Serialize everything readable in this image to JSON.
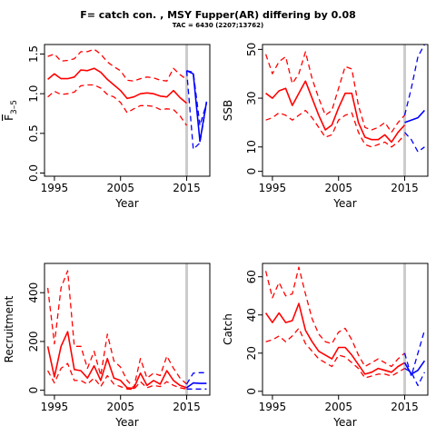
{
  "header": {
    "title": "F= catch con. , MSY Fupper(AR) differing by 0.08",
    "subtitle": "TAC = 6430 (2207;13762)"
  },
  "colors": {
    "historical": "#ff0000",
    "projection": "#0000ff",
    "marker_line": "#cccccc"
  },
  "chart_data": [
    {
      "type": "line",
      "ylabel": "F3-5",
      "ylabel_main": "F",
      "ylabel_sub": "3–5",
      "xlabel": "Year",
      "xlim": [
        1993.5,
        2018.5
      ],
      "ylim": [
        -0.04,
        1.62
      ],
      "xticks": [
        1995,
        2005,
        2015
      ],
      "yticks": [
        0.0,
        0.5,
        1.0,
        1.5
      ],
      "ytick_labels": [
        "0.0",
        "0.5",
        "1.0",
        "1.5"
      ],
      "vline": 2015,
      "x": [
        1994,
        1995,
        1996,
        1997,
        1998,
        1999,
        2000,
        2001,
        2002,
        2003,
        2004,
        2005,
        2006,
        2007,
        2008,
        2009,
        2010,
        2011,
        2012,
        2013,
        2014,
        2015
      ],
      "median": [
        1.18,
        1.25,
        1.19,
        1.19,
        1.21,
        1.3,
        1.29,
        1.32,
        1.27,
        1.18,
        1.11,
        1.04,
        0.94,
        0.96,
        1.0,
        1.01,
        1.0,
        0.97,
        0.96,
        1.04,
        0.95,
        0.88
      ],
      "upper": [
        1.47,
        1.5,
        1.41,
        1.42,
        1.44,
        1.53,
        1.53,
        1.56,
        1.5,
        1.4,
        1.34,
        1.29,
        1.17,
        1.16,
        1.19,
        1.21,
        1.2,
        1.17,
        1.16,
        1.32,
        1.24,
        1.18
      ],
      "lower": [
        0.96,
        1.03,
        0.99,
        1.0,
        1.02,
        1.1,
        1.11,
        1.11,
        1.07,
        0.99,
        0.96,
        0.89,
        0.76,
        0.81,
        0.85,
        0.85,
        0.84,
        0.8,
        0.81,
        0.8,
        0.72,
        0.6
      ],
      "proj_x": [
        2015,
        2016,
        2017,
        2018
      ],
      "proj_median": [
        1.29,
        1.25,
        0.4,
        0.9
      ],
      "proj_upper": [
        1.29,
        1.27,
        0.6,
        0.88
      ],
      "proj_lower": [
        1.29,
        0.3,
        0.38,
        0.88
      ]
    },
    {
      "type": "line",
      "ylabel": "SSB",
      "xlabel": "Year",
      "xlim": [
        1993.5,
        2018.5
      ],
      "ylim": [
        -2,
        52
      ],
      "xticks": [
        1995,
        2005,
        2015
      ],
      "yticks": [
        0,
        10,
        30,
        50
      ],
      "ytick_labels": [
        "0",
        "10",
        "30",
        "50"
      ],
      "vline": 2015,
      "x": [
        1994,
        1995,
        1996,
        1997,
        1998,
        1999,
        2000,
        2001,
        2002,
        2003,
        2004,
        2005,
        2006,
        2007,
        2008,
        2009,
        2010,
        2011,
        2012,
        2013,
        2014,
        2015
      ],
      "median": [
        32,
        30,
        33,
        34,
        27,
        32,
        37,
        30,
        23,
        17,
        19,
        26,
        32,
        32,
        20,
        14,
        13,
        13,
        15,
        12,
        16,
        19
      ],
      "upper": [
        48,
        40,
        45,
        47,
        36,
        40,
        49,
        38,
        30,
        23,
        25,
        34,
        43,
        42,
        27,
        18,
        17,
        18,
        20,
        16,
        20,
        23
      ],
      "lower": [
        21,
        22,
        24,
        23,
        21,
        23,
        25,
        22,
        18,
        14,
        15,
        21,
        23,
        24,
        16,
        11,
        10,
        11,
        12,
        10,
        12,
        15
      ],
      "proj_x": [
        2015,
        2016,
        2017,
        2018
      ],
      "proj_median": [
        20,
        21,
        22,
        25
      ],
      "proj_upper": [
        23,
        34,
        47,
        52
      ],
      "proj_lower": [
        16,
        13,
        8,
        10
      ]
    },
    {
      "type": "line",
      "ylabel": "Recruitment",
      "xlabel": "Year",
      "xlim": [
        1993.5,
        2018.5
      ],
      "ylim": [
        -20,
        520
      ],
      "xticks": [
        1995,
        2005,
        2015
      ],
      "yticks": [
        0,
        200,
        400
      ],
      "ytick_labels": [
        "0",
        "200",
        "400"
      ],
      "vline": 2015,
      "x": [
        1994,
        1995,
        1996,
        1997,
        1998,
        1999,
        2000,
        2001,
        2002,
        2003,
        2004,
        2005,
        2006,
        2007,
        2008,
        2009,
        2010,
        2011,
        2012,
        2013,
        2014,
        2015
      ],
      "median": [
        180,
        55,
        180,
        240,
        85,
        80,
        50,
        100,
        40,
        130,
        50,
        40,
        10,
        8,
        70,
        20,
        40,
        25,
        80,
        40,
        20,
        10
      ],
      "upper": [
        420,
        190,
        420,
        490,
        180,
        180,
        90,
        160,
        60,
        230,
        120,
        95,
        40,
        10,
        130,
        50,
        70,
        60,
        140,
        90,
        50,
        25
      ],
      "lower": [
        80,
        30,
        90,
        110,
        40,
        40,
        25,
        50,
        15,
        60,
        25,
        15,
        5,
        3,
        35,
        10,
        20,
        15,
        35,
        20,
        10,
        5
      ],
      "proj_x": [
        2015,
        2016,
        2017,
        2018
      ],
      "proj_median": [
        10,
        30,
        28,
        28
      ],
      "proj_upper": [
        25,
        70,
        72,
        72
      ],
      "proj_lower": [
        5,
        5,
        5,
        5
      ]
    },
    {
      "type": "line",
      "ylabel": "Catch",
      "xlabel": "Year",
      "xlim": [
        1993.5,
        2018.5
      ],
      "ylim": [
        -2,
        67
      ],
      "xticks": [
        1995,
        2005,
        2015
      ],
      "yticks": [
        0,
        20,
        40,
        60
      ],
      "ytick_labels": [
        "0",
        "20",
        "40",
        "60"
      ],
      "vline": 2015,
      "x": [
        1994,
        1995,
        1996,
        1997,
        1998,
        1999,
        2000,
        2001,
        2002,
        2003,
        2004,
        2005,
        2006,
        2007,
        2008,
        2009,
        2010,
        2011,
        2012,
        2013,
        2014,
        2015
      ],
      "median": [
        41,
        36,
        41,
        36,
        37,
        46,
        32,
        26,
        21,
        19,
        17,
        23,
        23,
        19,
        14,
        9,
        10,
        12,
        11,
        10,
        13,
        15
      ],
      "upper": [
        63,
        49,
        57,
        50,
        51,
        65,
        51,
        38,
        30,
        26,
        25,
        31,
        33,
        27,
        19,
        13,
        15,
        17,
        15,
        13,
        17,
        20
      ],
      "lower": [
        26,
        27,
        29,
        26,
        29,
        33,
        25,
        21,
        17,
        15,
        13,
        19,
        18,
        15,
        12,
        7,
        8,
        9,
        9,
        8,
        10,
        12
      ],
      "proj_x": [
        2015,
        2016,
        2017,
        2018
      ],
      "proj_median": [
        15,
        9,
        11,
        16
      ],
      "proj_upper": [
        20,
        8,
        20,
        32
      ],
      "proj_lower": [
        12,
        10,
        3,
        10
      ]
    }
  ]
}
